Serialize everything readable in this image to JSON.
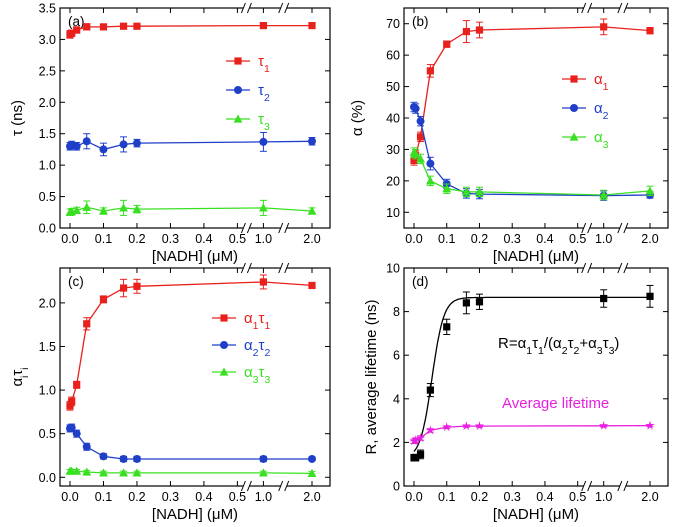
{
  "chart_data": [
    {
      "id": "a",
      "type": "line",
      "panel_label": "(a)",
      "xlabel": "[NADH] (μM)",
      "ylabel": "τ (ns)",
      "ylim": [
        0,
        3.5
      ],
      "yticks": [
        0,
        0.5,
        1.0,
        1.5,
        2.0,
        2.5,
        3.0,
        3.5
      ],
      "ytick_labels": [
        "0.0",
        "0.5",
        "1.0",
        "1.5",
        "2.0",
        "2.5",
        "3.0",
        "3.5"
      ],
      "xticks": [
        0,
        0.1,
        0.2,
        0.3,
        0.4,
        0.5,
        1.0,
        2.0
      ],
      "xtick_labels": [
        "0.0",
        "0.1",
        "0.2",
        "0.3",
        "0.4",
        "0.5",
        "1.0",
        "2.0"
      ],
      "axis_breaks": true,
      "legend_position": "right",
      "x": [
        0,
        0.005,
        0.02,
        0.05,
        0.1,
        0.16,
        0.2,
        1.0,
        2.0
      ],
      "series": [
        {
          "name": "τ1",
          "color": "#e8211d",
          "marker": "square",
          "values": [
            3.08,
            3.1,
            3.15,
            3.2,
            3.2,
            3.21,
            3.21,
            3.22,
            3.22
          ],
          "errors": [
            0.06,
            0.05,
            0.05,
            0.05,
            0.04,
            0.04,
            0.04,
            0.04,
            0.03
          ]
        },
        {
          "name": "τ2",
          "color": "#1f3fc9",
          "marker": "circle",
          "values": [
            1.3,
            1.32,
            1.3,
            1.38,
            1.25,
            1.33,
            1.35,
            1.37,
            1.38
          ],
          "errors": [
            0.06,
            0.06,
            0.06,
            0.12,
            0.1,
            0.12,
            0.06,
            0.15,
            0.06
          ]
        },
        {
          "name": "τ3",
          "color": "#39e021",
          "marker": "triangle",
          "values": [
            0.25,
            0.26,
            0.28,
            0.33,
            0.27,
            0.32,
            0.3,
            0.32,
            0.27
          ],
          "errors": [
            0.05,
            0.05,
            0.05,
            0.1,
            0.05,
            0.12,
            0.06,
            0.12,
            0.05
          ]
        }
      ]
    },
    {
      "id": "b",
      "type": "line",
      "panel_label": "(b)",
      "xlabel": "[NADH] (μM)",
      "ylabel": "α (%)",
      "ylim": [
        5,
        75
      ],
      "yticks": [
        10,
        20,
        30,
        40,
        50,
        60,
        70
      ],
      "ytick_labels": [
        "10",
        "20",
        "30",
        "40",
        "50",
        "60",
        "70"
      ],
      "xticks": [
        0,
        0.1,
        0.2,
        0.3,
        0.4,
        0.5,
        1.0,
        2.0
      ],
      "xtick_labels": [
        "0.0",
        "0.1",
        "0.2",
        "0.3",
        "0.4",
        "0.5",
        "1.0",
        "2.0"
      ],
      "axis_breaks": true,
      "legend_position": "right",
      "x": [
        0,
        0.005,
        0.02,
        0.05,
        0.1,
        0.16,
        0.2,
        1.0,
        2.0
      ],
      "series": [
        {
          "name": "α1",
          "color": "#e8211d",
          "marker": "square",
          "values": [
            26.5,
            28.0,
            34.0,
            55.0,
            63.5,
            67.5,
            68.0,
            69.0,
            67.8
          ],
          "errors": [
            1.5,
            1.5,
            1.5,
            2.0,
            1.0,
            3.5,
            2.5,
            2.5,
            1.0
          ]
        },
        {
          "name": "α2",
          "color": "#1f3fc9",
          "marker": "circle",
          "values": [
            43.5,
            43.0,
            39.0,
            25.5,
            19.0,
            16.0,
            15.8,
            15.3,
            15.5
          ],
          "errors": [
            1.5,
            1.5,
            1.5,
            2.0,
            1.5,
            1.5,
            1.5,
            1.5,
            1.0
          ]
        },
        {
          "name": "α3",
          "color": "#39e021",
          "marker": "triangle",
          "values": [
            29.0,
            28.5,
            27.0,
            20.0,
            17.5,
            16.5,
            16.5,
            15.5,
            16.8
          ],
          "errors": [
            1.5,
            1.5,
            1.5,
            1.5,
            1.5,
            1.5,
            1.5,
            1.5,
            1.5
          ]
        }
      ]
    },
    {
      "id": "c",
      "type": "line",
      "panel_label": "(c)",
      "xlabel": "[NADH] (μM)",
      "ylabel": "αiτi",
      "ylim": [
        -0.1,
        2.4
      ],
      "yticks": [
        0.0,
        0.5,
        1.0,
        1.5,
        2.0
      ],
      "ytick_labels": [
        "0.0",
        "0.5",
        "1.0",
        "1.5",
        "2.0"
      ],
      "xticks": [
        0,
        0.1,
        0.2,
        0.3,
        0.4,
        0.5,
        1.0,
        2.0
      ],
      "xtick_labels": [
        "0.0",
        "0.1",
        "0.2",
        "0.3",
        "0.4",
        "0.5",
        "1.0",
        "2.0"
      ],
      "axis_breaks": true,
      "legend_position": "right",
      "x": [
        0,
        0.005,
        0.02,
        0.05,
        0.1,
        0.16,
        0.2,
        1.0,
        2.0
      ],
      "series": [
        {
          "name": "α1τ1",
          "color": "#e8211d",
          "marker": "square",
          "values": [
            0.82,
            0.87,
            1.06,
            1.76,
            2.04,
            2.17,
            2.19,
            2.24,
            2.2
          ],
          "errors": [
            0.05,
            0.05,
            0.04,
            0.07,
            0.04,
            0.1,
            0.08,
            0.08,
            0.03
          ]
        },
        {
          "name": "α2τ2",
          "color": "#1f3fc9",
          "marker": "circle",
          "values": [
            0.56,
            0.57,
            0.5,
            0.35,
            0.24,
            0.21,
            0.21,
            0.21,
            0.21
          ],
          "errors": [
            0.04,
            0.04,
            0.04,
            0.04,
            0.03,
            0.03,
            0.03,
            0.03,
            0.02
          ]
        },
        {
          "name": "α3τ3",
          "color": "#39e021",
          "marker": "triangle",
          "values": [
            0.07,
            0.07,
            0.07,
            0.06,
            0.05,
            0.05,
            0.05,
            0.05,
            0.045
          ],
          "errors": [
            0.02,
            0.02,
            0.02,
            0.02,
            0.02,
            0.02,
            0.02,
            0.02,
            0.02
          ]
        }
      ]
    },
    {
      "id": "d",
      "type": "line",
      "panel_label": "(d)",
      "xlabel": "[NADH] (μM)",
      "ylabel": "R, average lifetime (ns)",
      "ylim": [
        0,
        10
      ],
      "yticks": [
        0,
        2,
        4,
        6,
        8,
        10
      ],
      "ytick_labels": [
        "0",
        "2",
        "4",
        "6",
        "8",
        "10"
      ],
      "xticks": [
        0,
        0.1,
        0.2,
        0.3,
        0.4,
        0.5,
        1.0,
        2.0
      ],
      "xtick_labels": [
        "0.0",
        "0.1",
        "0.2",
        "0.3",
        "0.4",
        "0.5",
        "1.0",
        "2.0"
      ],
      "axis_breaks": true,
      "annotations": [
        "R=α1τ1/(α2τ2+α3τ3)",
        "Average lifetime"
      ],
      "x": [
        0,
        0.005,
        0.02,
        0.05,
        0.1,
        0.16,
        0.2,
        1.0,
        2.0
      ],
      "series": [
        {
          "name": "R",
          "color": "#000000",
          "marker": "square",
          "values": [
            1.3,
            1.3,
            1.45,
            4.4,
            7.3,
            8.4,
            8.45,
            8.6,
            8.7
          ],
          "errors": [
            0.15,
            0.15,
            0.2,
            0.3,
            0.35,
            0.5,
            0.35,
            0.4,
            0.5
          ]
        },
        {
          "name": "Average lifetime",
          "color": "#e81fe0",
          "marker": "star",
          "values": [
            2.05,
            2.1,
            2.2,
            2.55,
            2.7,
            2.75,
            2.75,
            2.76,
            2.77
          ],
          "errors": [
            0.1,
            0.1,
            0.1,
            0.08,
            0.06,
            0.05,
            0.05,
            0.05,
            0.05
          ]
        }
      ]
    }
  ]
}
